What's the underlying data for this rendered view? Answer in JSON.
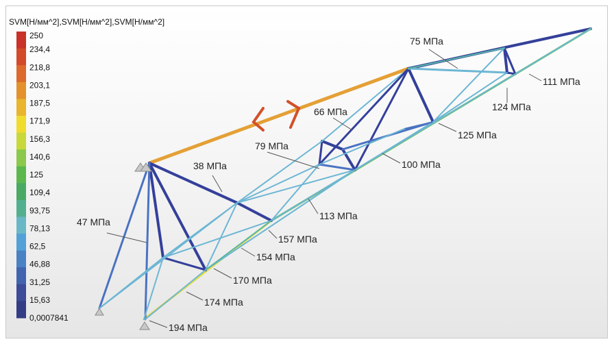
{
  "legend": {
    "title": "SVM[H/мм^2],SVM[H/мм^2],SVM[H/мм^2]",
    "values": [
      "250",
      "234,4",
      "218,8",
      "203,1",
      "187,5",
      "171,9",
      "156,3",
      "140,6",
      "125",
      "109,4",
      "93,75",
      "78,13",
      "62,5",
      "46,88",
      "31,25",
      "15,63",
      "0,0007841"
    ],
    "colors": [
      "#c83228",
      "#d24a2a",
      "#dc6a2c",
      "#e3912c",
      "#e8b52c",
      "#f0dc2c",
      "#c8d83a",
      "#8cc84a",
      "#5cb84e",
      "#4aaa64",
      "#52b08e",
      "#6ab8c6",
      "#52a2d8",
      "#4a82c4",
      "#4264ae",
      "#3c4c98",
      "#343c84"
    ]
  },
  "annotations": [
    {
      "id": "75",
      "text": "75 МПа"
    },
    {
      "id": "111",
      "text": "111 МПа"
    },
    {
      "id": "124",
      "text": "124 МПа"
    },
    {
      "id": "125",
      "text": "125 МПа"
    },
    {
      "id": "66",
      "text": "66 МПа"
    },
    {
      "id": "79",
      "text": "79 МПа"
    },
    {
      "id": "100",
      "text": "100 МПа"
    },
    {
      "id": "38",
      "text": "38 МПа"
    },
    {
      "id": "113",
      "text": "113 МПа"
    },
    {
      "id": "47",
      "text": "47 МПа"
    },
    {
      "id": "157",
      "text": "157 МПа"
    },
    {
      "id": "154",
      "text": "154 МПа"
    },
    {
      "id": "170",
      "text": "170 МПа"
    },
    {
      "id": "174",
      "text": "174 МПа"
    },
    {
      "id": "194",
      "text": "194 МПа"
    }
  ]
}
